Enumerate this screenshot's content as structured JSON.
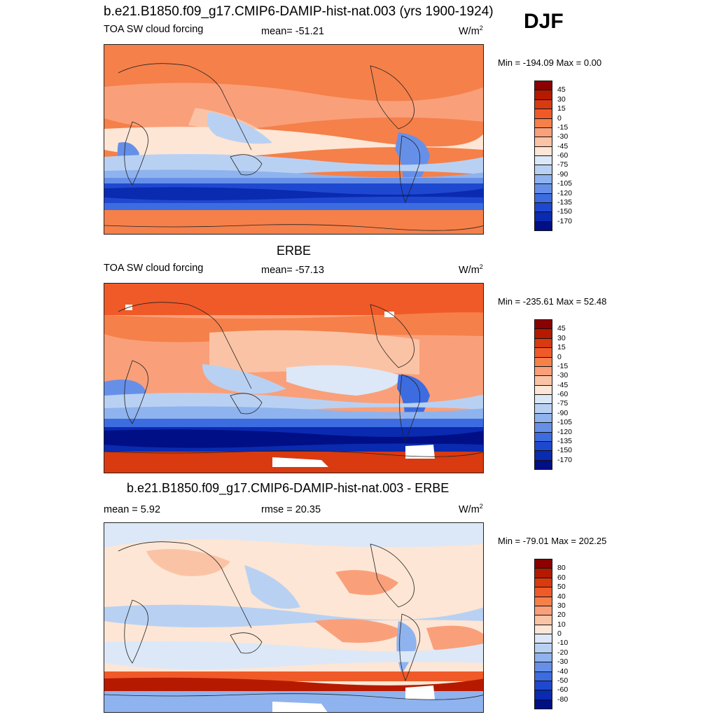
{
  "season": "DJF",
  "panels": [
    {
      "title": "b.e21.B1850.f09_g17.CMIP6-DAMIP-hist-nat.003 (yrs 1900-1924)",
      "left_label": "TOA SW cloud forcing",
      "center_label": "mean= -51.21",
      "units": "W/m",
      "units_sup": "2",
      "minmax": "Min = -194.09 Max =   0.00",
      "colorbar": {
        "labels": [
          "45",
          "30",
          "15",
          "0",
          "-15",
          "-30",
          "-45",
          "-60",
          "-75",
          "-90",
          "-105",
          "-120",
          "-135",
          "-150",
          "-170"
        ],
        "colors": [
          "#8b0000",
          "#b51a00",
          "#d93a10",
          "#f05a28",
          "#f5804a",
          "#f9a07a",
          "#fbc3a5",
          "#fde6d5",
          "#dce8f7",
          "#b8d1f3",
          "#8fb3ee",
          "#6690e8",
          "#3d6ce0",
          "#1f48d0",
          "#0a2ab0",
          "#000f85"
        ]
      }
    },
    {
      "title": "ERBE",
      "left_label": "TOA SW cloud forcing",
      "center_label": "mean= -57.13",
      "units": "W/m",
      "units_sup": "2",
      "minmax": "Min = -235.61 Max =  52.48",
      "colorbar": {
        "labels": [
          "45",
          "30",
          "15",
          "0",
          "-15",
          "-30",
          "-45",
          "-60",
          "-75",
          "-90",
          "-105",
          "-120",
          "-135",
          "-150",
          "-170"
        ],
        "colors": [
          "#8b0000",
          "#b51a00",
          "#d93a10",
          "#f05a28",
          "#f5804a",
          "#f9a07a",
          "#fbc3a5",
          "#fde6d5",
          "#dce8f7",
          "#b8d1f3",
          "#8fb3ee",
          "#6690e8",
          "#3d6ce0",
          "#1f48d0",
          "#0a2ab0",
          "#000f85"
        ]
      }
    },
    {
      "title": "b.e21.B1850.f09_g17.CMIP6-DAMIP-hist-nat.003 - ERBE",
      "left_label": "mean =   5.92",
      "center_label": "rmse =  20.35",
      "units": "W/m",
      "units_sup": "2",
      "minmax": "Min = -79.01 Max = 202.25",
      "colorbar": {
        "labels": [
          "80",
          "60",
          "50",
          "40",
          "30",
          "20",
          "10",
          "0",
          "-10",
          "-20",
          "-30",
          "-40",
          "-50",
          "-60",
          "-80"
        ],
        "colors": [
          "#8b0000",
          "#b51a00",
          "#d93a10",
          "#f05a28",
          "#f5804a",
          "#f9a07a",
          "#fbc3a5",
          "#fde6d5",
          "#dce8f7",
          "#b8d1f3",
          "#8fb3ee",
          "#6690e8",
          "#3d6ce0",
          "#1f48d0",
          "#0a2ab0",
          "#000f85"
        ]
      }
    }
  ]
}
